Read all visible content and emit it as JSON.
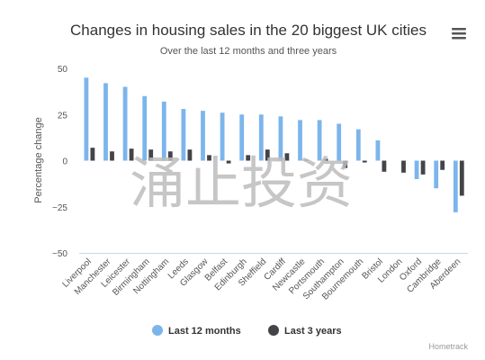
{
  "chart_data": {
    "type": "bar",
    "title": "Changes in housing sales in the 20 biggest UK cities",
    "subtitle": "Over the last 12 months and three years",
    "xlabel": "",
    "ylabel": "Percentage change",
    "ylim": [
      -50,
      50
    ],
    "yticks": [
      50,
      25,
      0,
      -25,
      -50
    ],
    "ytick_labels": [
      "50",
      "25",
      "0",
      "−25",
      "−50"
    ],
    "grid": false,
    "legend_position": "bottom-center",
    "categories": [
      "Liverpool",
      "Manchester",
      "Leicester",
      "Birmingham",
      "Nottingham",
      "Leeds",
      "Glasgow",
      "Belfast",
      "Edinburgh",
      "Sheffield",
      "Cardiff",
      "Newcastle",
      "Portsmouth",
      "Southampton",
      "Bournemouth",
      "Bristol",
      "London",
      "Oxford",
      "Cambridge",
      "Aberdeen"
    ],
    "series": [
      {
        "name": "Last 12 months",
        "color": "#7cb5ec",
        "values": [
          45,
          42,
          40,
          35,
          32,
          28,
          27,
          26,
          25,
          25,
          24,
          22,
          22,
          20,
          17,
          11,
          0,
          -10,
          -15,
          -28
        ]
      },
      {
        "name": "Last 3 years",
        "color": "#434348",
        "values": [
          7,
          5,
          6.5,
          6,
          5,
          6,
          3,
          -1.5,
          3,
          6,
          4,
          0.5,
          1,
          -4,
          -1,
          -6,
          -6.5,
          -7.5,
          -5,
          -19
        ]
      }
    ]
  },
  "watermark": "涌止投资",
  "credit": "Hometrack",
  "menu_icon": "hamburger-menu-icon"
}
